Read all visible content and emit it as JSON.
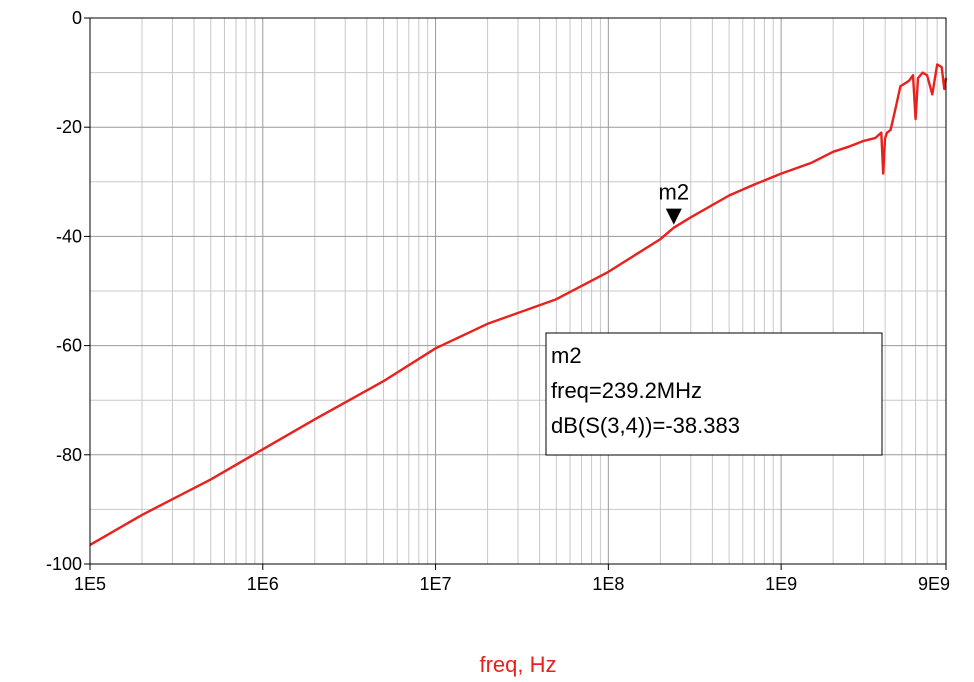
{
  "chart_data": {
    "type": "line",
    "title": "",
    "xlabel": "freq, Hz",
    "ylabel": "",
    "x_scale": "log",
    "xlim": [
      100000,
      9000000000
    ],
    "ylim": [
      -100,
      0
    ],
    "grid": true,
    "x_ticks": [
      {
        "value": 100000,
        "label": "1E5"
      },
      {
        "value": 1000000,
        "label": "1E6"
      },
      {
        "value": 10000000,
        "label": "1E7"
      },
      {
        "value": 100000000,
        "label": "1E8"
      },
      {
        "value": 1000000000,
        "label": "1E9"
      },
      {
        "value": 9000000000,
        "label": "9E9"
      }
    ],
    "y_ticks": [
      {
        "value": 0,
        "label": "0"
      },
      {
        "value": -20,
        "label": "-20"
      },
      {
        "value": -40,
        "label": "-40"
      },
      {
        "value": -60,
        "label": "-60"
      },
      {
        "value": -80,
        "label": "-80"
      },
      {
        "value": -100,
        "label": "-100"
      }
    ],
    "line_color": "#e8211d",
    "xlabel_color": "#e8211d",
    "series": [
      {
        "name": "dB(S(3,4))",
        "x": [
          100000,
          200000,
          500000,
          1000000,
          2000000,
          5000000,
          10000000,
          20000000,
          50000000,
          100000000,
          200000000,
          239200000,
          300000000,
          500000000,
          700000000,
          1000000000,
          1500000000,
          2000000000,
          2500000000,
          3000000000,
          3500000000,
          3800000000,
          3900000000,
          4000000000,
          4100000000,
          4300000000,
          4600000000,
          4900000000,
          5200000000,
          5500000000,
          5800000000,
          6000000000,
          6200000000,
          6600000000,
          7000000000,
          7500000000,
          8000000000,
          8500000000,
          8800000000,
          9000000000
        ],
        "y": [
          -96.5,
          -91,
          -84.5,
          -79,
          -73.5,
          -66.5,
          -60.5,
          -56,
          -51.5,
          -46.5,
          -40.5,
          -38.4,
          -36.5,
          -32.5,
          -30.5,
          -28.5,
          -26.5,
          -24.5,
          -23.5,
          -22.5,
          -22,
          -21,
          -28.5,
          -22,
          -21,
          -20.5,
          -16.5,
          -12.5,
          -12,
          -11.5,
          -10.5,
          -18.5,
          -11,
          -10,
          -10.5,
          -14,
          -8.5,
          -9,
          -13,
          -11
        ]
      }
    ],
    "marker": {
      "name": "m2",
      "freq": 239200000,
      "value": -38.383,
      "readout": [
        "m2",
        "freq=239.2MHz",
        "dB(S(3,4))=-38.383"
      ]
    }
  }
}
